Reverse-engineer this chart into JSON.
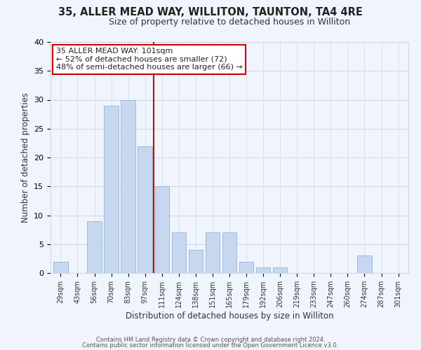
{
  "title": "35, ALLER MEAD WAY, WILLITON, TAUNTON, TA4 4RE",
  "subtitle": "Size of property relative to detached houses in Williton",
  "xlabel": "Distribution of detached houses by size in Williton",
  "ylabel": "Number of detached properties",
  "bar_labels": [
    "29sqm",
    "43sqm",
    "56sqm",
    "70sqm",
    "83sqm",
    "97sqm",
    "111sqm",
    "124sqm",
    "138sqm",
    "151sqm",
    "165sqm",
    "179sqm",
    "192sqm",
    "206sqm",
    "219sqm",
    "233sqm",
    "247sqm",
    "260sqm",
    "274sqm",
    "287sqm",
    "301sqm"
  ],
  "bar_values": [
    2,
    0,
    9,
    29,
    30,
    22,
    15,
    7,
    4,
    7,
    7,
    2,
    1,
    1,
    0,
    0,
    0,
    0,
    3,
    0,
    0
  ],
  "bar_color": "#c5d8f0",
  "bar_edge_color": "#a0b8d8",
  "vline_x": 5.5,
  "vline_color": "#cc0000",
  "ylim": [
    0,
    40
  ],
  "annotation_text": "35 ALLER MEAD WAY: 101sqm\n← 52% of detached houses are smaller (72)\n48% of semi-detached houses are larger (66) →",
  "annotation_box_color": "#ffffff",
  "annotation_box_edge": "#cc0000",
  "footer_line1": "Contains HM Land Registry data © Crown copyright and database right 2024.",
  "footer_line2": "Contains public sector information licensed under the Open Government Licence v3.0.",
  "bg_color": "#f0f4fc",
  "grid_color": "#d0d8e8",
  "yticks": [
    0,
    5,
    10,
    15,
    20,
    25,
    30,
    35,
    40
  ]
}
